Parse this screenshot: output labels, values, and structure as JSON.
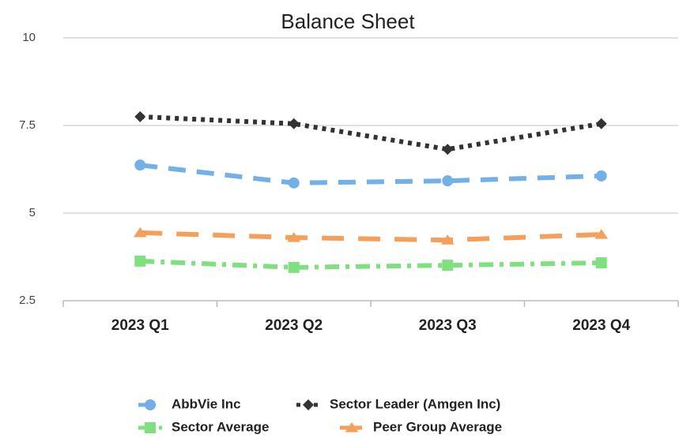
{
  "chart_data": {
    "type": "line",
    "title": "Balance Sheet",
    "categories": [
      "2023 Q1",
      "2023 Q2",
      "2023 Q3",
      "2023 Q4"
    ],
    "series": [
      {
        "name": "AbbVie Inc",
        "color": "#74b0e8",
        "values": [
          6.37,
          5.86,
          5.92,
          6.06
        ]
      },
      {
        "name": "Sector Leader (Amgen Inc)",
        "color": "#333333",
        "values": [
          7.75,
          7.55,
          6.82,
          7.55
        ]
      },
      {
        "name": "Sector Average",
        "color": "#7ee07e",
        "values": [
          3.63,
          3.45,
          3.51,
          3.58
        ]
      },
      {
        "name": "Peer Group Average",
        "color": "#f5a05a",
        "values": [
          4.44,
          4.3,
          4.23,
          4.39
        ]
      }
    ],
    "ylim": [
      2.5,
      10
    ],
    "yticks": [
      2.5,
      5,
      7.5,
      10
    ],
    "grid": true
  }
}
